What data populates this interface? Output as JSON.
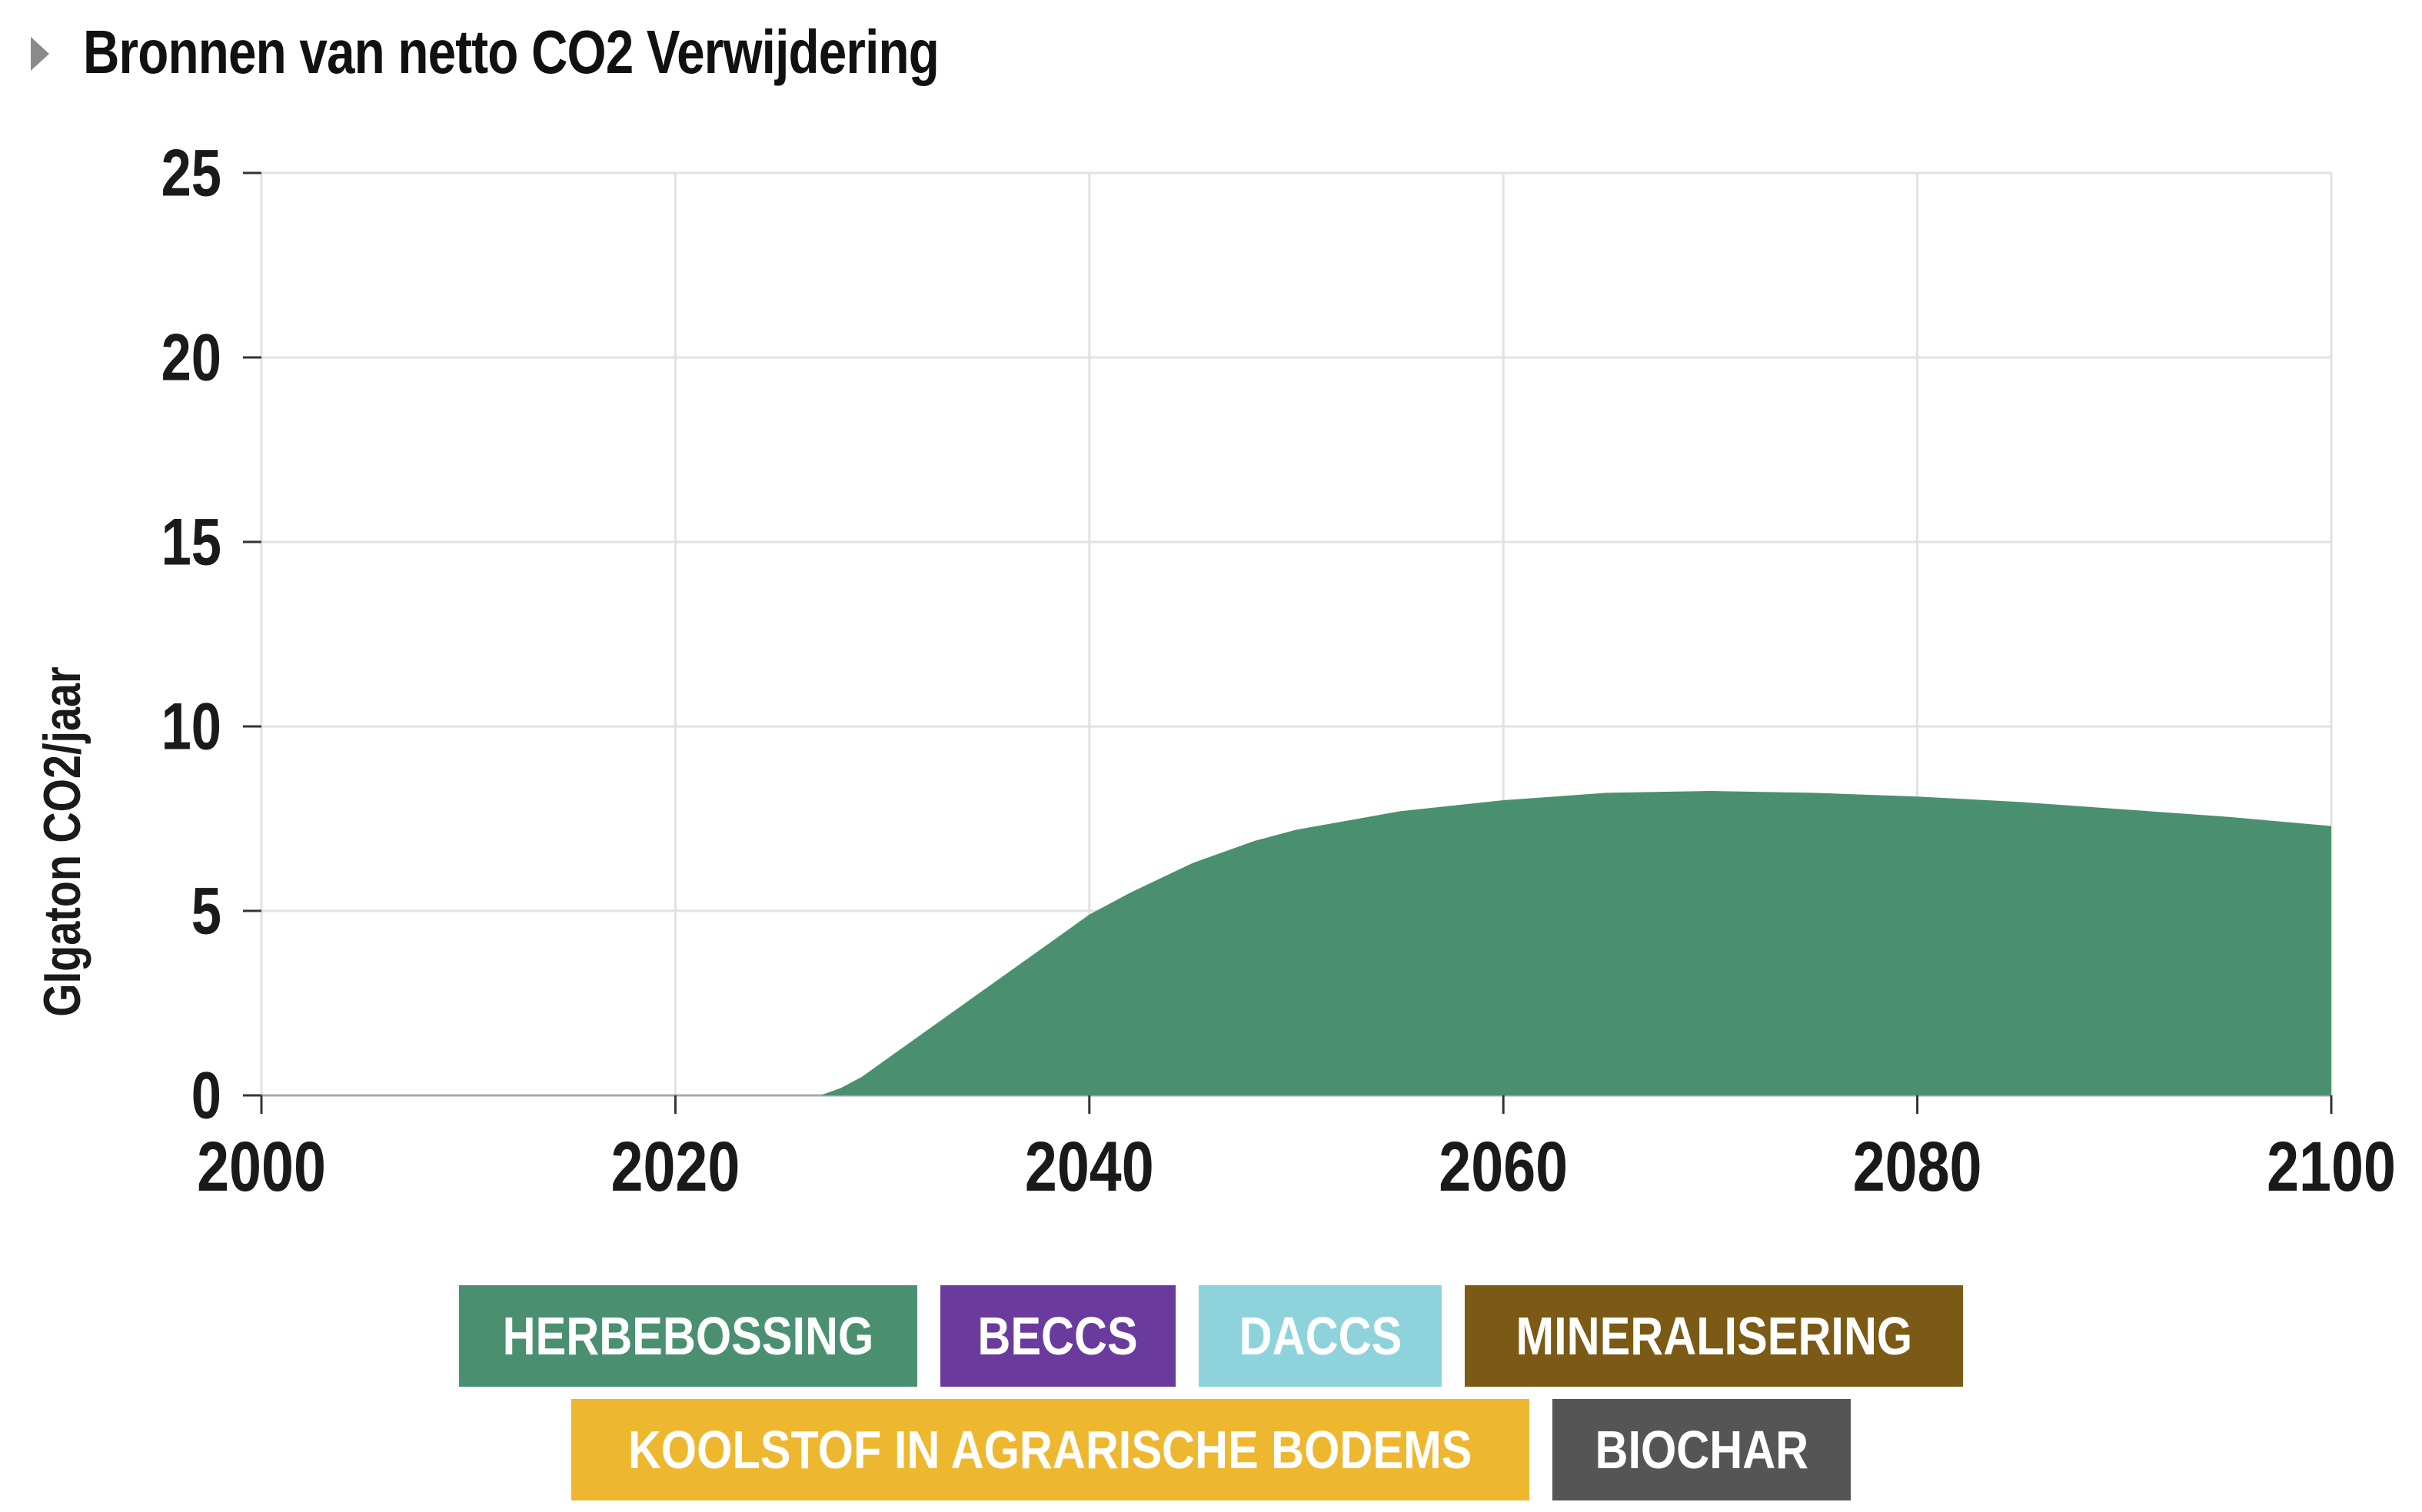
{
  "header": {
    "title": "Bronnen van netto CO2 Verwijdering"
  },
  "legend": [
    {
      "label": "HERBEBOSSING",
      "color": "#4a9070"
    },
    {
      "label": "BECCS",
      "color": "#6a3a9c"
    },
    {
      "label": "DACCS",
      "color": "#8ed3dc"
    },
    {
      "label": "MINERALISERING",
      "color": "#7a5a14"
    },
    {
      "label": "KOOLSTOF IN AGRARISCHE BODEMS",
      "color": "#edb830"
    },
    {
      "label": "BIOCHAR",
      "color": "#555555"
    }
  ],
  "chart_data": {
    "type": "area",
    "title": "Bronnen van netto CO2 Verwijdering",
    "xlabel": "",
    "ylabel": "GIgaton CO2/jaar",
    "xlim": [
      2000,
      2100
    ],
    "ylim": [
      0,
      25
    ],
    "x_ticks": [
      2000,
      2020,
      2040,
      2060,
      2080,
      2100
    ],
    "y_ticks": [
      0,
      5,
      10,
      15,
      20,
      25
    ],
    "grid": true,
    "legend_position": "bottom",
    "series": [
      {
        "name": "HERBEBOSSING",
        "color": "#4a9070",
        "x": [
          2000,
          2010,
          2020,
          2027,
          2028,
          2029,
          2030,
          2032,
          2034,
          2036,
          2038,
          2040,
          2042,
          2045,
          2048,
          2050,
          2055,
          2060,
          2065,
          2070,
          2075,
          2080,
          2085,
          2090,
          2095,
          2100
        ],
        "values": [
          0,
          0,
          0,
          0,
          0.2,
          0.5,
          0.9,
          1.7,
          2.5,
          3.3,
          4.1,
          4.9,
          5.5,
          6.3,
          6.9,
          7.2,
          7.7,
          8.0,
          8.2,
          8.25,
          8.2,
          8.1,
          7.95,
          7.75,
          7.55,
          7.3
        ]
      },
      {
        "name": "BECCS",
        "color": "#6a3a9c",
        "x": [
          2000,
          2100
        ],
        "values": [
          0,
          0
        ]
      },
      {
        "name": "DACCS",
        "color": "#8ed3dc",
        "x": [
          2000,
          2100
        ],
        "values": [
          0,
          0
        ]
      },
      {
        "name": "MINERALISERING",
        "color": "#7a5a14",
        "x": [
          2000,
          2100
        ],
        "values": [
          0,
          0
        ]
      },
      {
        "name": "KOOLSTOF IN AGRARISCHE BODEMS",
        "color": "#edb830",
        "x": [
          2000,
          2100
        ],
        "values": [
          0,
          0
        ]
      },
      {
        "name": "BIOCHAR",
        "color": "#555555",
        "x": [
          2000,
          2100
        ],
        "values": [
          0,
          0
        ]
      }
    ]
  }
}
